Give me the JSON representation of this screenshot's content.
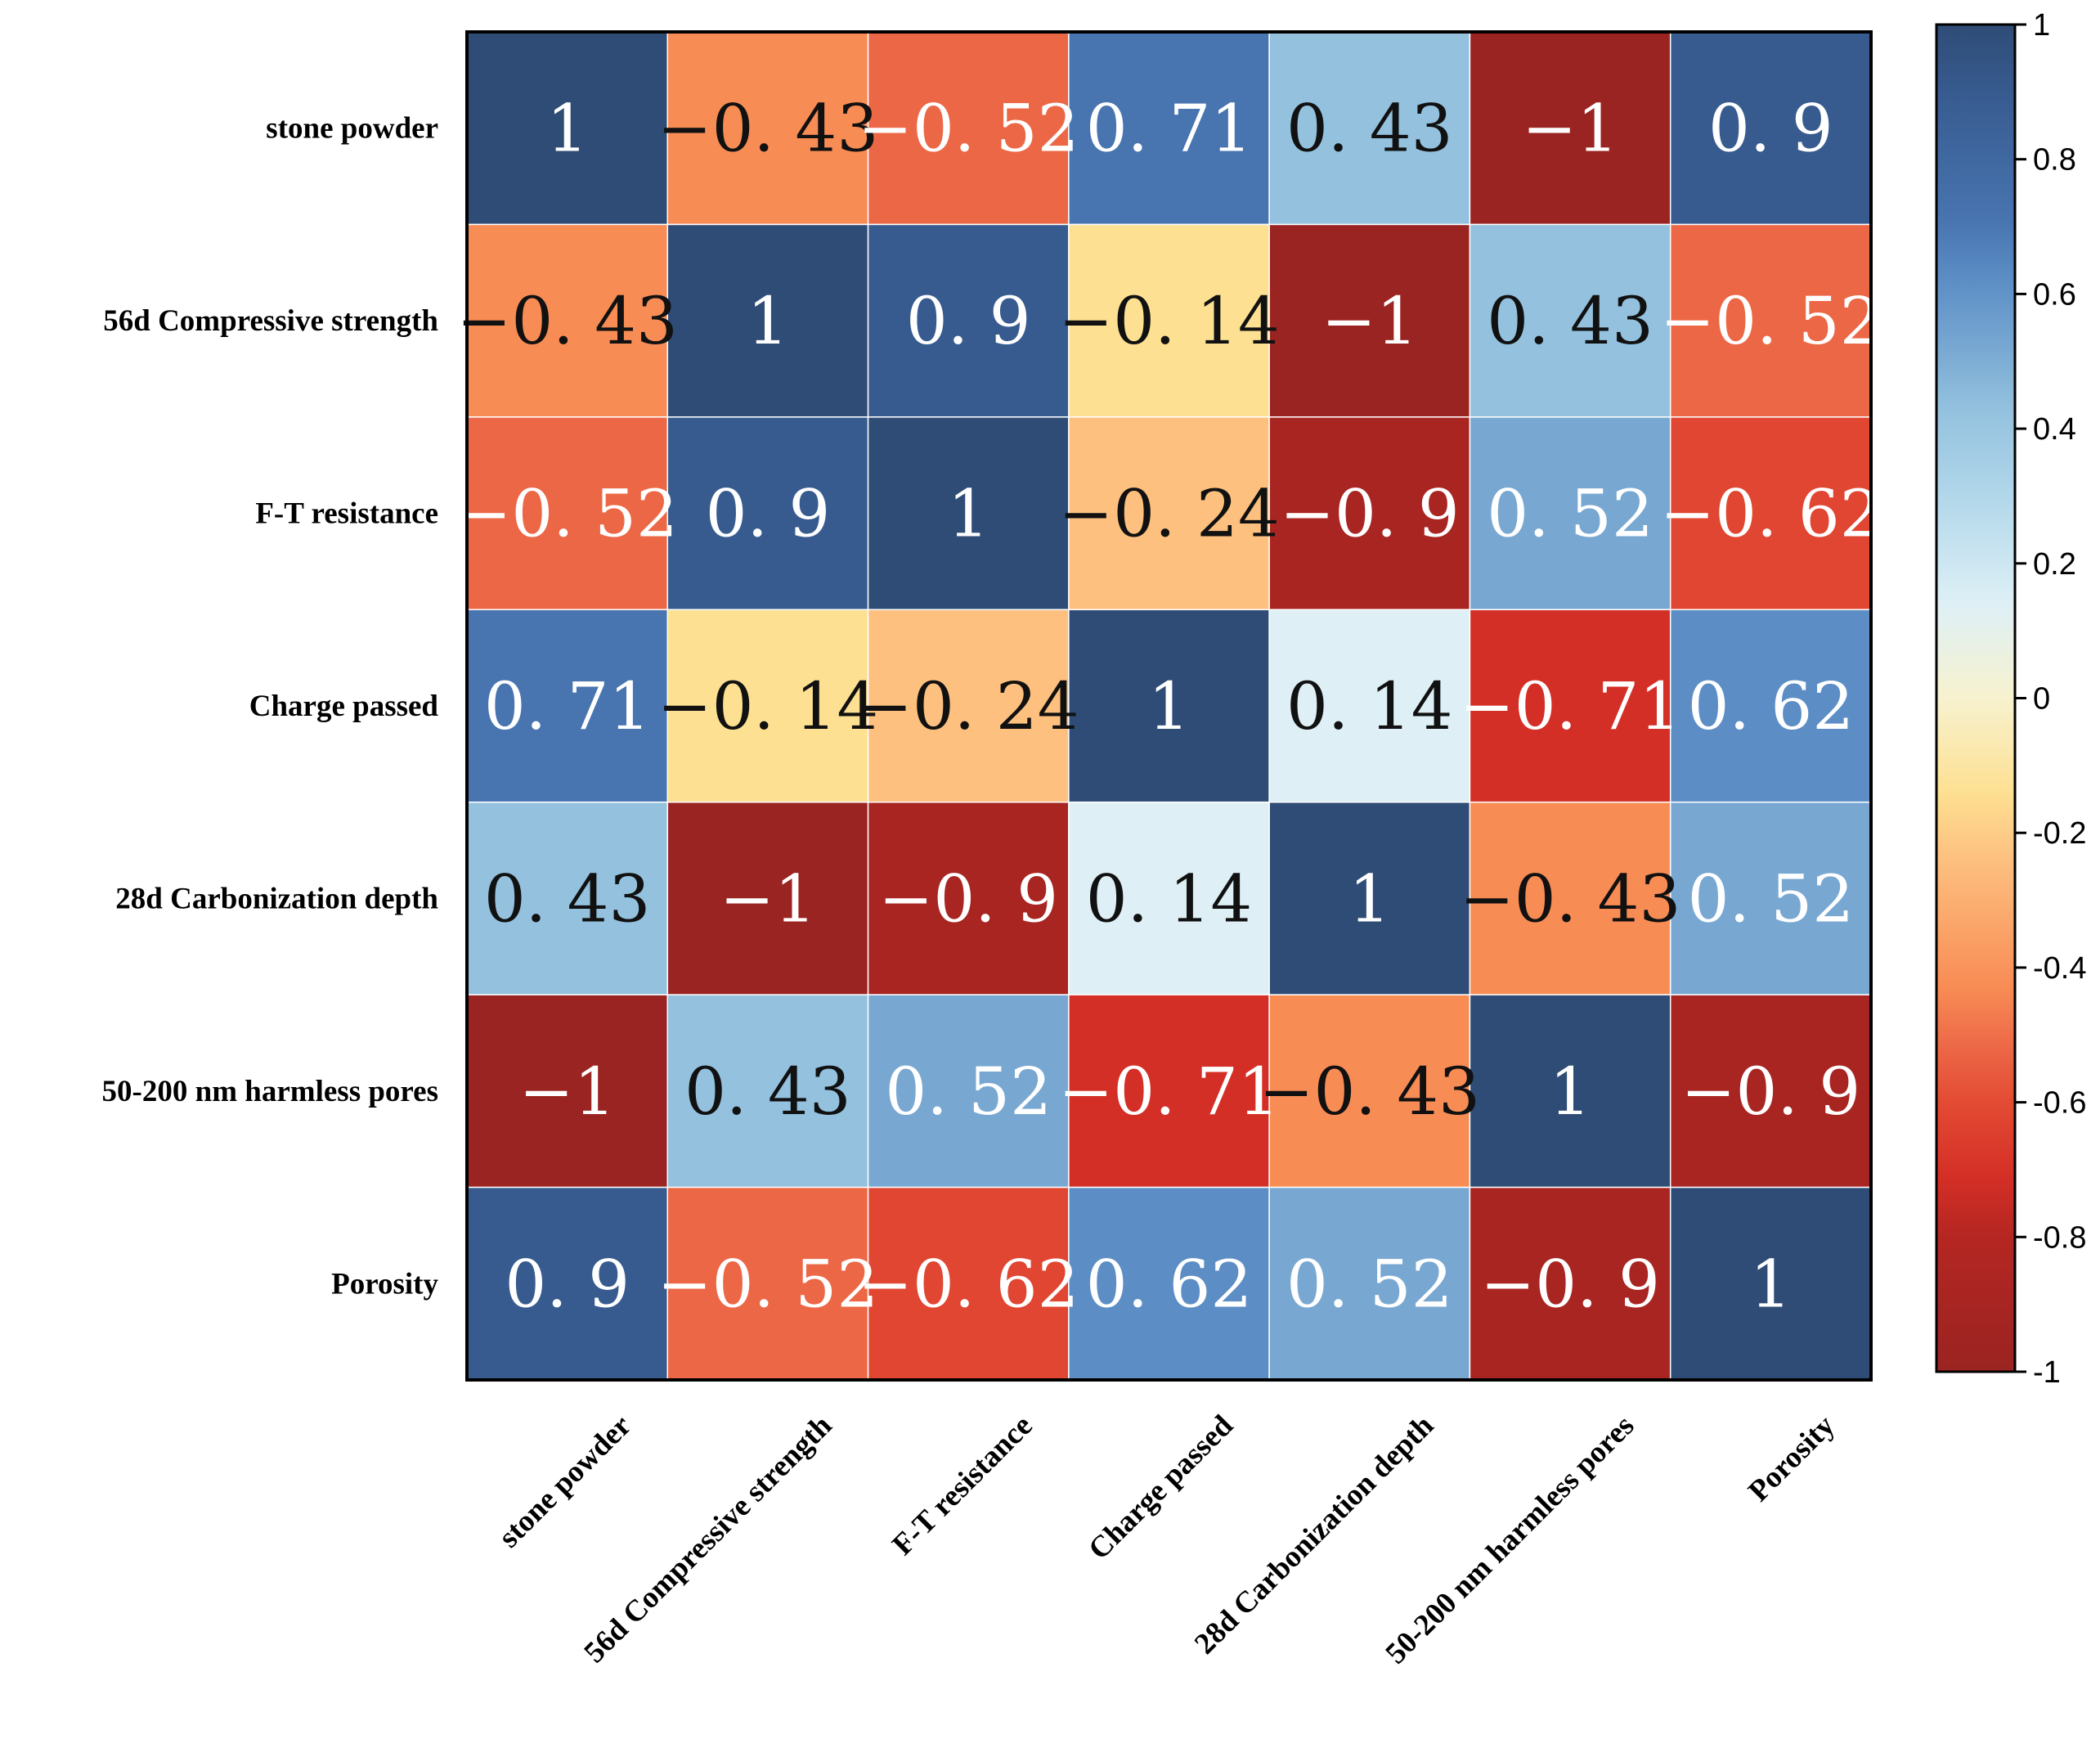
{
  "chart_data": {
    "type": "heatmap",
    "title": "",
    "row_labels": [
      "stone powder",
      "56d Compressive strength",
      "F-T resistance",
      "Charge passed",
      "28d Carbonization depth",
      "50-200 nm harmless pores",
      "Porosity"
    ],
    "col_labels": [
      "stone powder",
      "56d Compressive strength",
      "F-T resistance",
      "Charge passed",
      "28d Carbonization depth",
      "50-200 nm harmless pores",
      "Porosity"
    ],
    "values": [
      [
        1,
        -0.43,
        -0.52,
        0.71,
        0.43,
        -1,
        0.9
      ],
      [
        -0.43,
        1,
        0.9,
        -0.14,
        -1,
        0.43,
        -0.52
      ],
      [
        -0.52,
        0.9,
        1,
        -0.24,
        -0.9,
        0.52,
        -0.62
      ],
      [
        0.71,
        -0.14,
        -0.24,
        1,
        0.14,
        -0.71,
        0.62
      ],
      [
        0.43,
        -1,
        -0.9,
        0.14,
        1,
        -0.43,
        0.52
      ],
      [
        -1,
        0.43,
        0.52,
        -0.71,
        -0.43,
        1,
        -0.9
      ],
      [
        0.9,
        -0.52,
        -0.62,
        0.62,
        0.52,
        -0.9,
        1
      ]
    ],
    "cell_text": [
      [
        "1",
        "−0. 43",
        "−0. 52",
        "0. 71",
        "0. 43",
        "−1",
        "0. 9"
      ],
      [
        "−0. 43",
        "1",
        "0. 9",
        "−0. 14",
        "−1",
        "0. 43",
        "−0. 52"
      ],
      [
        "−0. 52",
        "0. 9",
        "1",
        "−0. 24",
        "−0. 9",
        "0. 52",
        "−0. 62"
      ],
      [
        "0. 71",
        "−0. 14",
        "−0. 24",
        "1",
        "0. 14",
        "−0. 71",
        "0. 62"
      ],
      [
        "0. 43",
        "−1",
        "−0. 9",
        "0. 14",
        "1",
        "−0. 43",
        "0. 52"
      ],
      [
        "−1",
        "0. 43",
        "0. 52",
        "−0. 71",
        "−0. 43",
        "1",
        "−0. 9"
      ],
      [
        "0. 9",
        "−0. 52",
        "−0. 62",
        "0. 62",
        "0. 52",
        "−0. 9",
        "1"
      ]
    ],
    "colorbar": {
      "range": [
        -1,
        1
      ],
      "ticks": [
        1,
        0.8,
        0.6,
        0.4,
        0.2,
        0,
        -0.2,
        -0.4,
        -0.6,
        -0.8,
        -1
      ],
      "tick_labels": [
        "1",
        "0.8",
        "0.6",
        "0.4",
        "0.2",
        "0",
        "-0.2",
        "-0.4",
        "-0.6",
        "-0.8",
        "-1"
      ],
      "placement": "right",
      "colors": [
        {
          "v": -1.0,
          "c": "#9a2421"
        },
        {
          "v": -0.8,
          "c": "#b52622"
        },
        {
          "v": -0.71,
          "c": "#d42f26"
        },
        {
          "v": -0.6,
          "c": "#e34b33"
        },
        {
          "v": -0.52,
          "c": "#ec6746"
        },
        {
          "v": -0.43,
          "c": "#f88c55"
        },
        {
          "v": -0.24,
          "c": "#fdc07f"
        },
        {
          "v": -0.14,
          "c": "#fde092"
        },
        {
          "v": 0.0,
          "c": "#f7f2cf"
        },
        {
          "v": 0.14,
          "c": "#def0f6"
        },
        {
          "v": 0.3,
          "c": "#b1d7ea"
        },
        {
          "v": 0.43,
          "c": "#93c1de"
        },
        {
          "v": 0.52,
          "c": "#78a8d2"
        },
        {
          "v": 0.62,
          "c": "#5c8ec5"
        },
        {
          "v": 0.71,
          "c": "#4874b0"
        },
        {
          "v": 0.9,
          "c": "#375b8f"
        },
        {
          "v": 1.0,
          "c": "#2f4c76"
        }
      ]
    }
  }
}
